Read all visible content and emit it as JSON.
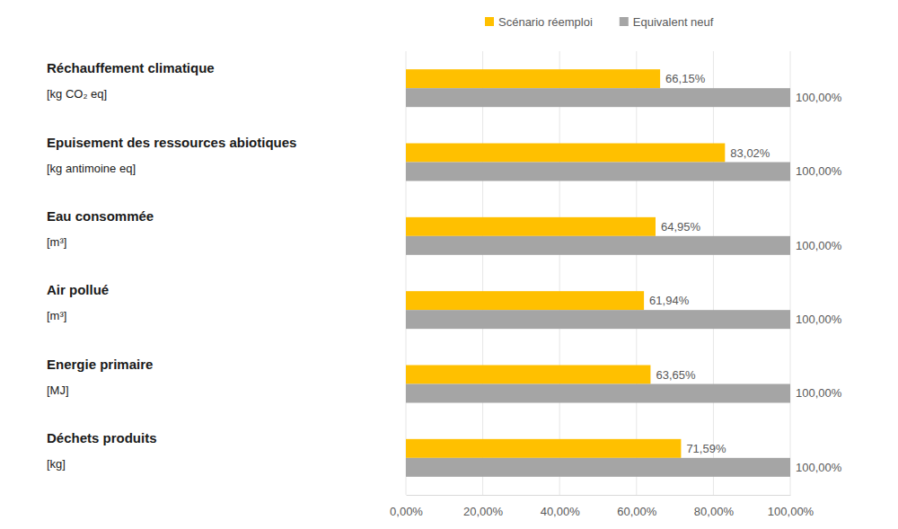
{
  "chart_data": {
    "type": "bar",
    "orientation": "horizontal",
    "categories": [
      "Réchauffement climatique",
      "Epuisement des ressources abiotiques",
      "Eau consommée",
      "Air pollué",
      "Energie primaire",
      "Déchets produits"
    ],
    "category_units": [
      "[kg CO₂ eq]",
      "[kg antimoine eq]",
      "[m³]",
      "[m³]",
      "[MJ]",
      "[kg]"
    ],
    "series": [
      {
        "name": "Scénario réemploi",
        "color": "#ffc000",
        "values": [
          66.15,
          83.02,
          64.95,
          61.94,
          63.65,
          71.59
        ],
        "value_labels": [
          "66,15%",
          "83,02%",
          "64,95%",
          "61,94%",
          "63,65%",
          "71,59%"
        ]
      },
      {
        "name": "Equivalent neuf",
        "color": "#a5a5a5",
        "values": [
          100,
          100,
          100,
          100,
          100,
          100
        ],
        "value_labels": [
          "100,00%",
          "100,00%",
          "100,00%",
          "100,00%",
          "100,00%",
          "100,00%"
        ]
      }
    ],
    "xlim": [
      0,
      100
    ],
    "xticks": [
      {
        "value": 0,
        "label": "0,00%"
      },
      {
        "value": 20,
        "label": "20,00%"
      },
      {
        "value": 40,
        "label": "40,00%"
      },
      {
        "value": 60,
        "label": "60,00%"
      },
      {
        "value": 80,
        "label": "80,00%"
      },
      {
        "value": 100,
        "label": "100,00%"
      }
    ],
    "grid": true,
    "legend": "top",
    "data_labels": true
  }
}
